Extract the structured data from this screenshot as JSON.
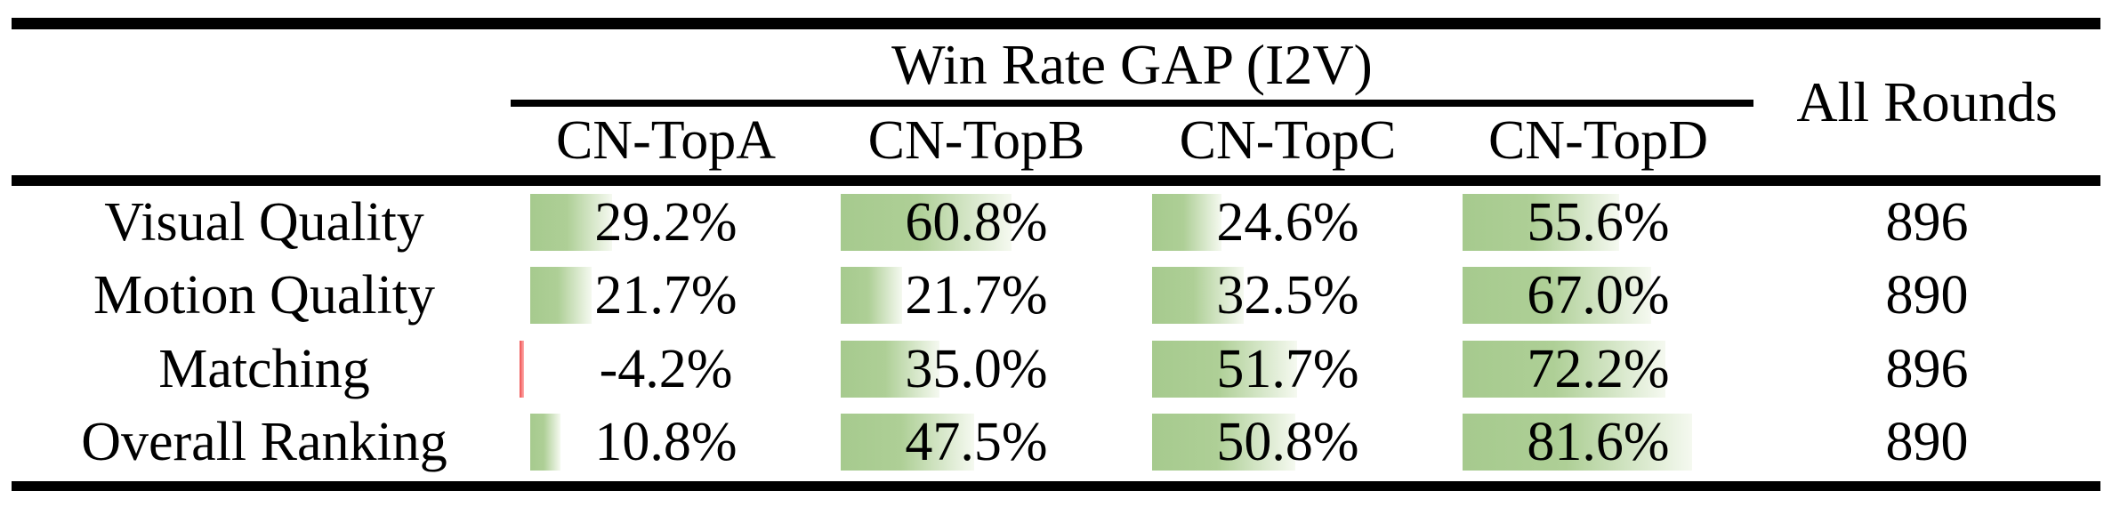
{
  "page": {
    "background": "#ffffff",
    "text_color": "#000000",
    "rule_color": "#000000"
  },
  "table": {
    "title": "Win Rate GAP (I2V)",
    "all_rounds_header": "All Rounds",
    "columns": [
      "CN-TopA",
      "CN-TopB",
      "CN-TopC",
      "CN-TopD"
    ],
    "rows": [
      {
        "label": "Visual Quality",
        "values": [
          29.2,
          60.8,
          24.6,
          55.6
        ],
        "all_rounds": "896"
      },
      {
        "label": "Motion Quality",
        "values": [
          21.7,
          21.7,
          32.5,
          67.0
        ],
        "all_rounds": "890"
      },
      {
        "label": "Matching",
        "values": [
          -4.2,
          35.0,
          51.7,
          72.2
        ],
        "all_rounds": "896"
      },
      {
        "label": "Overall Ranking",
        "values": [
          10.8,
          47.5,
          50.8,
          81.6
        ],
        "all_rounds": "890"
      }
    ],
    "colors": {
      "bar_positive_start": "#a6ca8e",
      "bar_positive_mid": "#aecf96",
      "bar_positive_end": "#f5f9f0",
      "bar_negative_start": "#ef4f4f",
      "bar_negative_end": "#ffb0b0"
    }
  },
  "chart_data": {
    "type": "table",
    "title": "Win Rate GAP (I2V)",
    "columns": [
      "CN-TopA",
      "CN-TopB",
      "CN-TopC",
      "CN-TopD",
      "All Rounds"
    ],
    "row_labels": [
      "Visual Quality",
      "Motion Quality",
      "Matching",
      "Overall Ranking"
    ],
    "series": [
      {
        "name": "CN-TopA",
        "values": [
          29.2,
          21.7,
          -4.2,
          10.8
        ]
      },
      {
        "name": "CN-TopB",
        "values": [
          60.8,
          21.7,
          35.0,
          47.5
        ]
      },
      {
        "name": "CN-TopC",
        "values": [
          24.6,
          32.5,
          51.7,
          50.8
        ]
      },
      {
        "name": "CN-TopD",
        "values": [
          55.6,
          67.0,
          72.2,
          81.6
        ]
      }
    ],
    "all_rounds": [
      896,
      890,
      896,
      890
    ],
    "value_unit": "%",
    "bar_style": "in-cell green gradient data bars, red sliver for negative"
  }
}
